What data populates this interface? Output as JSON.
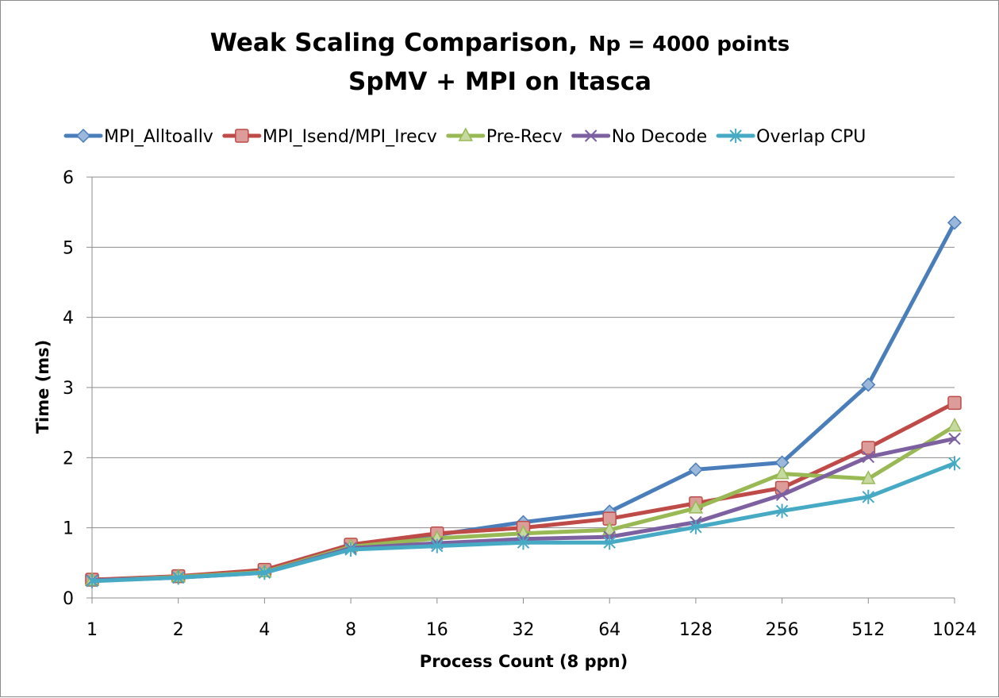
{
  "chart_data": {
    "type": "line",
    "title": "Weak Scaling Comparison,",
    "title_suffix": "Np = 4000 points",
    "subtitle": "SpMV + MPI on Itasca",
    "xlabel": "Process Count (8 ppn)",
    "ylabel": "Time (ms)",
    "ylim": [
      0,
      6
    ],
    "yticks": [
      "0",
      "1",
      "2",
      "3",
      "4",
      "5",
      "6"
    ],
    "categories": [
      "1",
      "2",
      "4",
      "8",
      "16",
      "32",
      "64",
      "128",
      "256",
      "512",
      "1024"
    ],
    "grid": "horizontal",
    "legend_position": "top",
    "series": [
      {
        "name": "MPI_Alltoallv",
        "color": "#4a7ebb",
        "marker": "diamond",
        "values": [
          0.25,
          0.3,
          0.39,
          0.75,
          0.9,
          1.08,
          1.23,
          1.83,
          1.93,
          3.04,
          5.35
        ]
      },
      {
        "name": "MPI_Isend/MPI_Irecv",
        "color": "#be4b48",
        "marker": "square",
        "values": [
          0.26,
          0.31,
          0.4,
          0.76,
          0.92,
          1.0,
          1.13,
          1.35,
          1.57,
          2.14,
          2.78
        ]
      },
      {
        "name": "Pre-Recv",
        "color": "#98b954",
        "marker": "triangle",
        "values": [
          0.25,
          0.3,
          0.37,
          0.73,
          0.85,
          0.92,
          0.97,
          1.28,
          1.77,
          1.7,
          2.45
        ]
      },
      {
        "name": "No Decode",
        "color": "#7d60a0",
        "marker": "x",
        "values": [
          0.25,
          0.29,
          0.36,
          0.71,
          0.78,
          0.84,
          0.87,
          1.08,
          1.47,
          2.01,
          2.27
        ]
      },
      {
        "name": "Overlap CPU",
        "color": "#46aac5",
        "marker": "star",
        "values": [
          0.24,
          0.29,
          0.36,
          0.69,
          0.74,
          0.79,
          0.79,
          1.01,
          1.24,
          1.44,
          1.92
        ]
      }
    ]
  }
}
